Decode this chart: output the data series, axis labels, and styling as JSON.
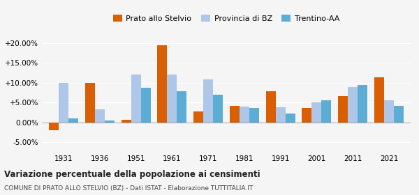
{
  "years": [
    1931,
    1936,
    1951,
    1961,
    1971,
    1981,
    1991,
    2001,
    2011,
    2021
  ],
  "prato": [
    -2.0,
    10.0,
    0.7,
    19.5,
    2.8,
    4.1,
    7.8,
    3.7,
    6.7,
    11.3
  ],
  "provincia_bz": [
    10.0,
    3.3,
    12.0,
    12.0,
    10.8,
    4.0,
    3.8,
    5.0,
    8.9,
    5.5
  ],
  "trentino_aa": [
    1.0,
    0.4,
    8.8,
    7.8,
    7.0,
    3.7,
    2.2,
    5.5,
    9.5,
    4.2
  ],
  "color_prato": "#d95f02",
  "color_provincia": "#aec6e8",
  "color_trentino": "#5badd6",
  "title": "Variazione percentuale della popolazione ai censimenti",
  "subtitle": "COMUNE DI PRATO ALLO STELVIO (BZ) - Dati ISTAT - Elaborazione TUTTITALIA.IT",
  "ylim": [
    -7.5,
    22.0
  ],
  "yticks": [
    -5.0,
    0.0,
    5.0,
    10.0,
    15.0,
    20.0
  ],
  "background_color": "#f5f5f5",
  "legend_labels": [
    "Prato allo Stelvio",
    "Provincia di BZ",
    "Trentino-AA"
  ]
}
